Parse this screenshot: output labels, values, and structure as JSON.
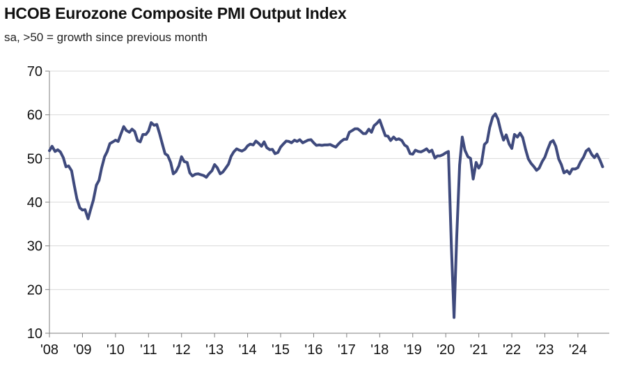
{
  "chart_data": {
    "type": "line",
    "title": "HCOB Eurozone Composite PMI Output Index",
    "subtitle": "sa, >50 = growth since previous month",
    "xlabel": "",
    "ylabel": "",
    "ylim": [
      10,
      70
    ],
    "yticks": [
      10,
      20,
      30,
      40,
      50,
      60,
      70
    ],
    "xlim": [
      2008.0,
      2024.95
    ],
    "xtick_labels": [
      "'08",
      "'09",
      "'10",
      "'11",
      "'12",
      "'13",
      "'14",
      "'15",
      "'16",
      "'17",
      "'18",
      "'19",
      "'20",
      "'21",
      "'22",
      "'23",
      "'24"
    ],
    "grid": "horizontal",
    "line_color": "#3f4a7d",
    "series": [
      {
        "x": [
          2008.0,
          2008.08,
          2008.17,
          2008.25,
          2008.33,
          2008.42,
          2008.5,
          2008.58,
          2008.67,
          2008.75,
          2008.83,
          2008.92,
          2009.0,
          2009.08,
          2009.17,
          2009.25,
          2009.33,
          2009.42,
          2009.5,
          2009.58,
          2009.67,
          2009.75,
          2009.83,
          2009.92,
          2010.0,
          2010.08,
          2010.17,
          2010.25,
          2010.33,
          2010.42,
          2010.5,
          2010.58,
          2010.67,
          2010.75,
          2010.83,
          2010.92,
          2011.0,
          2011.08,
          2011.17,
          2011.25,
          2011.33,
          2011.42,
          2011.5,
          2011.58,
          2011.67,
          2011.75,
          2011.83,
          2011.92,
          2012.0,
          2012.08,
          2012.17,
          2012.25,
          2012.33,
          2012.42,
          2012.5,
          2012.58,
          2012.67,
          2012.75,
          2012.83,
          2012.92,
          2013.0,
          2013.08,
          2013.17,
          2013.25,
          2013.33,
          2013.42,
          2013.5,
          2013.58,
          2013.67,
          2013.75,
          2013.83,
          2013.92,
          2014.0,
          2014.08,
          2014.17,
          2014.25,
          2014.33,
          2014.42,
          2014.5,
          2014.58,
          2014.67,
          2014.75,
          2014.83,
          2014.92,
          2015.0,
          2015.08,
          2015.17,
          2015.25,
          2015.33,
          2015.42,
          2015.5,
          2015.58,
          2015.67,
          2015.75,
          2015.83,
          2015.92,
          2016.0,
          2016.08,
          2016.17,
          2016.25,
          2016.33,
          2016.42,
          2016.5,
          2016.58,
          2016.67,
          2016.75,
          2016.83,
          2016.92,
          2017.0,
          2017.08,
          2017.17,
          2017.25,
          2017.33,
          2017.42,
          2017.5,
          2017.58,
          2017.67,
          2017.75,
          2017.83,
          2017.92,
          2018.0,
          2018.08,
          2018.17,
          2018.25,
          2018.33,
          2018.42,
          2018.5,
          2018.58,
          2018.67,
          2018.75,
          2018.83,
          2018.92,
          2019.0,
          2019.08,
          2019.17,
          2019.25,
          2019.33,
          2019.42,
          2019.5,
          2019.58,
          2019.67,
          2019.75,
          2019.83,
          2019.92,
          2020.0,
          2020.08,
          2020.17,
          2020.25,
          2020.33,
          2020.42,
          2020.5,
          2020.58,
          2020.67,
          2020.75,
          2020.83,
          2020.92,
          2021.0,
          2021.08,
          2021.17,
          2021.25,
          2021.33,
          2021.42,
          2021.5,
          2021.58,
          2021.67,
          2021.75,
          2021.83,
          2021.92,
          2022.0,
          2022.08,
          2022.17,
          2022.25,
          2022.33,
          2022.42,
          2022.5,
          2022.58,
          2022.67,
          2022.75,
          2022.83,
          2022.92,
          2023.0,
          2023.08,
          2023.17,
          2023.25,
          2023.33,
          2023.42,
          2023.5,
          2023.58,
          2023.67,
          2023.75,
          2023.83,
          2023.92,
          2024.0,
          2024.08,
          2024.17,
          2024.25,
          2024.33,
          2024.42,
          2024.5,
          2024.58,
          2024.67,
          2024.75
        ],
        "values": [
          51.8,
          52.8,
          51.6,
          52.0,
          51.5,
          50.2,
          48.1,
          48.3,
          47.2,
          43.9,
          40.8,
          38.7,
          38.2,
          38.3,
          36.2,
          38.4,
          40.5,
          43.9,
          45.0,
          47.8,
          50.4,
          51.6,
          53.4,
          53.8,
          54.2,
          53.9,
          55.7,
          57.3,
          56.4,
          56.0,
          56.7,
          56.2,
          54.1,
          53.8,
          55.5,
          55.5,
          56.3,
          58.2,
          57.6,
          57.8,
          55.8,
          53.3,
          51.1,
          50.7,
          49.1,
          46.5,
          47.0,
          48.3,
          50.4,
          49.3,
          49.1,
          46.7,
          46.0,
          46.4,
          46.5,
          46.3,
          46.1,
          45.7,
          46.5,
          47.2,
          48.6,
          47.9,
          46.5,
          46.9,
          47.7,
          48.7,
          50.5,
          51.5,
          52.2,
          51.9,
          51.7,
          52.1,
          52.9,
          53.3,
          53.1,
          54.0,
          53.5,
          52.8,
          53.8,
          52.5,
          52.0,
          52.1,
          51.1,
          51.4,
          52.6,
          53.3,
          54.0,
          53.9,
          53.6,
          54.2,
          53.9,
          54.3,
          53.6,
          53.9,
          54.2,
          54.3,
          53.6,
          53.0,
          53.1,
          53.0,
          53.1,
          53.1,
          53.2,
          52.9,
          52.6,
          53.3,
          53.9,
          54.4,
          54.4,
          56.0,
          56.4,
          56.8,
          56.8,
          56.3,
          55.7,
          55.7,
          56.7,
          56.0,
          57.5,
          58.1,
          58.8,
          57.1,
          55.2,
          55.1,
          54.1,
          54.9,
          54.3,
          54.5,
          54.1,
          53.1,
          52.7,
          51.1,
          51.0,
          51.9,
          51.6,
          51.5,
          51.8,
          52.2,
          51.5,
          51.9,
          50.1,
          50.6,
          50.6,
          50.9,
          51.3,
          51.6,
          29.7,
          13.6,
          31.9,
          48.5,
          54.9,
          51.9,
          50.4,
          50.0,
          45.3,
          49.1,
          47.8,
          48.8,
          53.2,
          53.8,
          57.1,
          59.5,
          60.2,
          59.0,
          56.2,
          54.2,
          55.4,
          53.3,
          52.3,
          55.5,
          54.9,
          55.8,
          54.8,
          52.0,
          49.9,
          48.9,
          48.1,
          47.3,
          47.8,
          49.3,
          50.3,
          52.0,
          53.7,
          54.1,
          52.8,
          49.9,
          48.6,
          46.7,
          47.2,
          46.5,
          47.6,
          47.6,
          47.9,
          49.2,
          50.3,
          51.7,
          52.2,
          50.9,
          50.2,
          51.0,
          49.6,
          48.1
        ]
      }
    ]
  }
}
